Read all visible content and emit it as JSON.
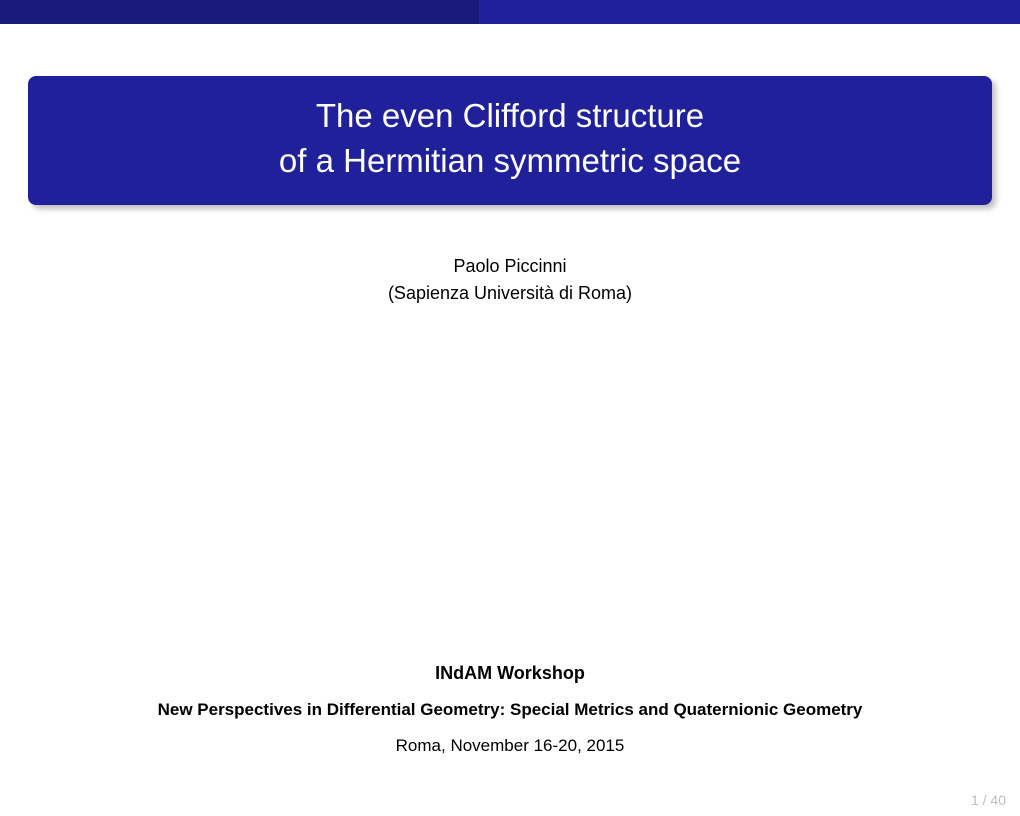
{
  "layout": {
    "topbar_left_width_pct": 47,
    "colors": {
      "topbar_left": "#1a1a7a",
      "topbar_right": "#20209a",
      "title_bg": "#20209a",
      "title_fg": "#ffffff",
      "text": "#000000",
      "pager": "#bdbdbd",
      "page_bg": "#ffffff"
    },
    "title_fontsize": 33,
    "body_fontsize": 18,
    "pager_fontsize": 14
  },
  "title": {
    "line1": "The even Clifford structure",
    "line2": "of a Hermitian symmetric space"
  },
  "author": {
    "name": "Paolo Piccinni",
    "affiliation": "(Sapienza Università di Roma)"
  },
  "workshop": {
    "name": "INdAM Workshop",
    "subtitle": "New Perspectives in Differential Geometry: Special Metrics and Quaternionic Geometry",
    "location_date": "Roma, November 16-20, 2015"
  },
  "pager": {
    "current": "1",
    "sep": " / ",
    "total": "40"
  }
}
